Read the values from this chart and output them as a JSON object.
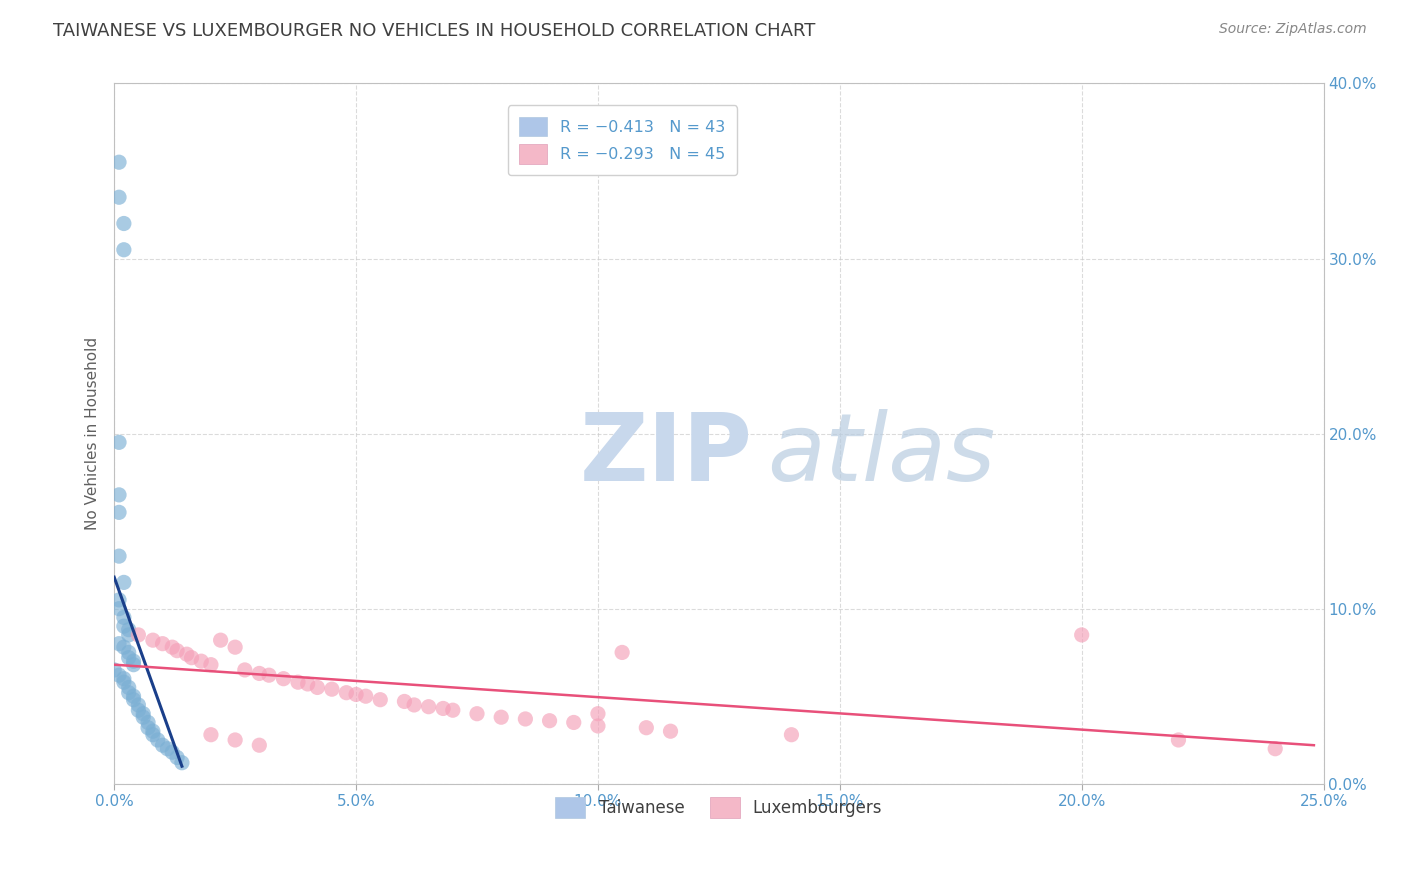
{
  "title": "TAIWANESE VS LUXEMBOURGER NO VEHICLES IN HOUSEHOLD CORRELATION CHART",
  "source": "Source: ZipAtlas.com",
  "ylabel": "No Vehicles in Household",
  "xlim": [
    0.0,
    0.25
  ],
  "ylim": [
    0.0,
    0.4
  ],
  "xtick_vals": [
    0.0,
    0.05,
    0.1,
    0.15,
    0.2,
    0.25
  ],
  "ytick_vals": [
    0.0,
    0.1,
    0.2,
    0.3,
    0.4
  ],
  "taiwanese_color": "#7bafd4",
  "luxembourger_color": "#f4a0b8",
  "taiwanese_patch_color": "#aec6e8",
  "luxembourger_patch_color": "#f4b8c8",
  "tw_scatter": [
    [
      0.001,
      0.355
    ],
    [
      0.001,
      0.335
    ],
    [
      0.002,
      0.32
    ],
    [
      0.002,
      0.305
    ],
    [
      0.001,
      0.195
    ],
    [
      0.001,
      0.165
    ],
    [
      0.001,
      0.155
    ],
    [
      0.001,
      0.13
    ],
    [
      0.002,
      0.115
    ],
    [
      0.001,
      0.105
    ],
    [
      0.001,
      0.1
    ],
    [
      0.002,
      0.095
    ],
    [
      0.002,
      0.09
    ],
    [
      0.003,
      0.088
    ],
    [
      0.003,
      0.085
    ],
    [
      0.001,
      0.08
    ],
    [
      0.002,
      0.078
    ],
    [
      0.003,
      0.075
    ],
    [
      0.003,
      0.072
    ],
    [
      0.004,
      0.07
    ],
    [
      0.004,
      0.068
    ],
    [
      0.0,
      0.065
    ],
    [
      0.001,
      0.062
    ],
    [
      0.002,
      0.06
    ],
    [
      0.002,
      0.058
    ],
    [
      0.003,
      0.055
    ],
    [
      0.003,
      0.052
    ],
    [
      0.004,
      0.05
    ],
    [
      0.004,
      0.048
    ],
    [
      0.005,
      0.045
    ],
    [
      0.005,
      0.042
    ],
    [
      0.006,
      0.04
    ],
    [
      0.006,
      0.038
    ],
    [
      0.007,
      0.035
    ],
    [
      0.007,
      0.032
    ],
    [
      0.008,
      0.03
    ],
    [
      0.008,
      0.028
    ],
    [
      0.009,
      0.025
    ],
    [
      0.01,
      0.022
    ],
    [
      0.011,
      0.02
    ],
    [
      0.012,
      0.018
    ],
    [
      0.013,
      0.015
    ],
    [
      0.014,
      0.012
    ]
  ],
  "lux_scatter": [
    [
      0.005,
      0.085
    ],
    [
      0.008,
      0.082
    ],
    [
      0.01,
      0.08
    ],
    [
      0.012,
      0.078
    ],
    [
      0.013,
      0.076
    ],
    [
      0.015,
      0.074
    ],
    [
      0.016,
      0.072
    ],
    [
      0.018,
      0.07
    ],
    [
      0.02,
      0.068
    ],
    [
      0.022,
      0.082
    ],
    [
      0.025,
      0.078
    ],
    [
      0.027,
      0.065
    ],
    [
      0.03,
      0.063
    ],
    [
      0.032,
      0.062
    ],
    [
      0.035,
      0.06
    ],
    [
      0.038,
      0.058
    ],
    [
      0.04,
      0.057
    ],
    [
      0.042,
      0.055
    ],
    [
      0.045,
      0.054
    ],
    [
      0.048,
      0.052
    ],
    [
      0.05,
      0.051
    ],
    [
      0.052,
      0.05
    ],
    [
      0.055,
      0.048
    ],
    [
      0.06,
      0.047
    ],
    [
      0.062,
      0.045
    ],
    [
      0.065,
      0.044
    ],
    [
      0.068,
      0.043
    ],
    [
      0.07,
      0.042
    ],
    [
      0.075,
      0.04
    ],
    [
      0.08,
      0.038
    ],
    [
      0.085,
      0.037
    ],
    [
      0.09,
      0.036
    ],
    [
      0.095,
      0.035
    ],
    [
      0.1,
      0.033
    ],
    [
      0.11,
      0.032
    ],
    [
      0.115,
      0.03
    ],
    [
      0.14,
      0.028
    ],
    [
      0.105,
      0.075
    ],
    [
      0.2,
      0.085
    ],
    [
      0.02,
      0.028
    ],
    [
      0.025,
      0.025
    ],
    [
      0.03,
      0.022
    ],
    [
      0.22,
      0.025
    ],
    [
      0.24,
      0.02
    ],
    [
      0.1,
      0.04
    ]
  ],
  "tw_trend_x": [
    0.0,
    0.014
  ],
  "tw_trend_y": [
    0.118,
    0.01
  ],
  "lux_trend_x": [
    0.0,
    0.248
  ],
  "lux_trend_y": [
    0.068,
    0.022
  ],
  "watermark_zip": "ZIP",
  "watermark_atlas": "atlas",
  "background_color": "#ffffff",
  "grid_color": "#cccccc",
  "title_color": "#404040",
  "axis_label_color": "#606060",
  "tick_color": "#5599cc",
  "scatter_size": 120,
  "legend_r1": "R = −0.413   N = 43",
  "legend_r2": "R = −0.293   N = 45",
  "legend_bottom": [
    "Taiwanese",
    "Luxembourgers"
  ]
}
